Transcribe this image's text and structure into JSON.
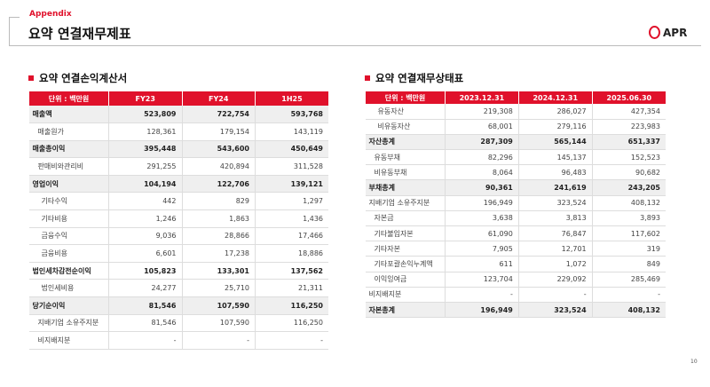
{
  "header": {
    "section": "Appendix",
    "title": "요약 연결재무제표",
    "logo": "APR",
    "accent": "#e0112b"
  },
  "income": {
    "title": "요약 연결손익계산서",
    "columns": [
      "단위 : 백만원",
      "FY23",
      "FY24",
      "1H25"
    ],
    "rows": [
      {
        "label": "매출액",
        "values": [
          "523,809",
          "722,754",
          "593,768"
        ],
        "bold": true,
        "indent": 0
      },
      {
        "label": "매출원가",
        "values": [
          "128,361",
          "179,154",
          "143,119"
        ],
        "indent": 1
      },
      {
        "label": "매출총이익",
        "values": [
          "395,448",
          "543,600",
          "450,649"
        ],
        "bold": true,
        "indent": 0
      },
      {
        "label": "판매비와관리비",
        "values": [
          "291,255",
          "420,894",
          "311,528"
        ],
        "indent": 1
      },
      {
        "label": "영업이익",
        "values": [
          "104,194",
          "122,706",
          "139,121"
        ],
        "bold": true,
        "indent": 0
      },
      {
        "label": "기타수익",
        "values": [
          "442",
          "829",
          "1,297"
        ],
        "indent": 2
      },
      {
        "label": "기타비용",
        "values": [
          "1,246",
          "1,863",
          "1,436"
        ],
        "indent": 2
      },
      {
        "label": "금융수익",
        "values": [
          "9,036",
          "28,866",
          "17,466"
        ],
        "indent": 2
      },
      {
        "label": "금융비용",
        "values": [
          "6,601",
          "17,238",
          "18,886"
        ],
        "indent": 2
      },
      {
        "label": "법인세차감전순이익",
        "values": [
          "105,823",
          "133,301",
          "137,562"
        ],
        "indent": 0,
        "semibold": true
      },
      {
        "label": "법인세비용",
        "values": [
          "24,277",
          "25,710",
          "21,311"
        ],
        "indent": 2
      },
      {
        "label": "당기순이익",
        "values": [
          "81,546",
          "107,590",
          "116,250"
        ],
        "bold": true,
        "indent": 0
      },
      {
        "label": "지배기업 소유주지분",
        "values": [
          "81,546",
          "107,590",
          "116,250"
        ],
        "indent": 1
      },
      {
        "label": "비지배지분",
        "values": [
          "-",
          "-",
          "-"
        ],
        "indent": 1
      }
    ]
  },
  "balance": {
    "title": "요약 연결재무상태표",
    "columns": [
      "단위 : 백만원",
      "2023.12.31",
      "2024.12.31",
      "2025.06.30"
    ],
    "rows": [
      {
        "label": "유동자산",
        "values": [
          "219,308",
          "286,027",
          "427,354"
        ],
        "indent": 2
      },
      {
        "label": "비유동자산",
        "values": [
          "68,001",
          "279,116",
          "223,983"
        ],
        "indent": 2
      },
      {
        "label": "자산총계",
        "values": [
          "287,309",
          "565,144",
          "651,337"
        ],
        "bold": true,
        "indent": 0
      },
      {
        "label": "유동부채",
        "values": [
          "82,296",
          "145,137",
          "152,523"
        ],
        "indent": 1
      },
      {
        "label": "비유동부채",
        "values": [
          "8,064",
          "96,483",
          "90,682"
        ],
        "indent": 1
      },
      {
        "label": "부채총계",
        "values": [
          "90,361",
          "241,619",
          "243,205"
        ],
        "bold": true,
        "indent": 0
      },
      {
        "label": "지배기업 소유주지분",
        "values": [
          "196,949",
          "323,524",
          "408,132"
        ],
        "indent": 0
      },
      {
        "label": "자본금",
        "values": [
          "3,638",
          "3,813",
          "3,893"
        ],
        "indent": 1
      },
      {
        "label": "기타불입자본",
        "values": [
          "61,090",
          "76,847",
          "117,602"
        ],
        "indent": 1
      },
      {
        "label": "기타자본",
        "values": [
          "7,905",
          "12,701",
          "319"
        ],
        "indent": 1
      },
      {
        "label": "기타포괄손익누계액",
        "values": [
          "611",
          "1,072",
          "849"
        ],
        "indent": 1
      },
      {
        "label": "이익잉여금",
        "values": [
          "123,704",
          "229,092",
          "285,469"
        ],
        "indent": 1
      },
      {
        "label": "비지배지분",
        "values": [
          "-",
          "-",
          "-"
        ],
        "indent": 0
      },
      {
        "label": "자본총계",
        "values": [
          "196,949",
          "323,524",
          "408,132"
        ],
        "bold": true,
        "indent": 0
      }
    ]
  },
  "page_number": "10"
}
